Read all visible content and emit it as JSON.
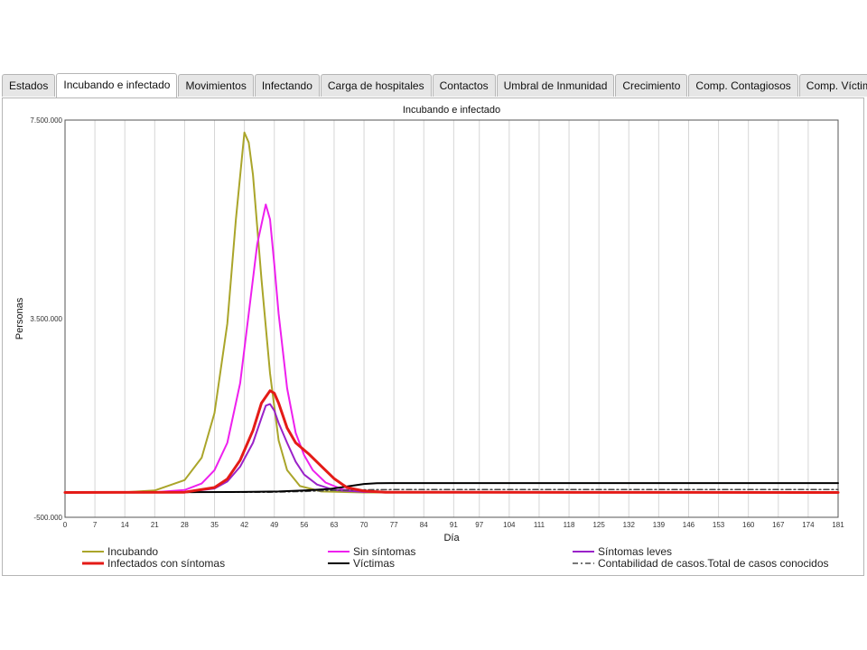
{
  "tabs": [
    {
      "label": "Estados"
    },
    {
      "label": "Incubando e infectado",
      "active": true
    },
    {
      "label": "Movimientos"
    },
    {
      "label": "Infectando"
    },
    {
      "label": "Carga de hospitales"
    },
    {
      "label": "Contactos"
    },
    {
      "label": "Umbral de Inmunidad"
    },
    {
      "label": "Crecimiento"
    },
    {
      "label": "Comp. Contagiosos"
    },
    {
      "label": "Comp. Víctimas"
    }
  ],
  "chart_data": {
    "type": "line",
    "title": "Incubando e infectado",
    "xlabel": "Día",
    "ylabel": "Personas",
    "xlim": [
      0,
      181
    ],
    "ylim": [
      -500000,
      7500000
    ],
    "x_ticks": [
      0,
      7,
      14,
      21,
      28,
      35,
      42,
      49,
      56,
      63,
      70,
      77,
      84,
      91,
      97,
      104,
      111,
      118,
      125,
      132,
      139,
      146,
      153,
      160,
      167,
      174,
      181
    ],
    "y_ticks": [
      -500000,
      3500000,
      7500000
    ],
    "y_tick_labels": [
      "-500.000",
      "3.500.000",
      "7.500.000"
    ],
    "grid": "vertical",
    "legend_position": "bottom",
    "series": [
      {
        "name": "Incubando",
        "color": "#aaa52a",
        "width": 2,
        "dash": "",
        "points": [
          [
            0,
            0
          ],
          [
            14,
            5000
          ],
          [
            21,
            40000
          ],
          [
            28,
            250000
          ],
          [
            32,
            700000
          ],
          [
            35,
            1600000
          ],
          [
            38,
            3400000
          ],
          [
            40,
            5500000
          ],
          [
            42,
            7250000
          ],
          [
            43,
            7050000
          ],
          [
            44,
            6400000
          ],
          [
            46,
            4300000
          ],
          [
            48,
            2400000
          ],
          [
            50,
            1050000
          ],
          [
            52,
            450000
          ],
          [
            55,
            130000
          ],
          [
            60,
            20000
          ],
          [
            70,
            0
          ],
          [
            181,
            0
          ]
        ]
      },
      {
        "name": "Sin síntomas",
        "color": "#ee20ee",
        "width": 2,
        "dash": "",
        "points": [
          [
            0,
            0
          ],
          [
            21,
            5000
          ],
          [
            28,
            50000
          ],
          [
            32,
            180000
          ],
          [
            35,
            450000
          ],
          [
            38,
            1000000
          ],
          [
            41,
            2200000
          ],
          [
            43,
            3600000
          ],
          [
            45,
            5000000
          ],
          [
            47,
            5800000
          ],
          [
            48,
            5500000
          ],
          [
            49,
            4600000
          ],
          [
            50,
            3600000
          ],
          [
            52,
            2100000
          ],
          [
            54,
            1200000
          ],
          [
            56,
            750000
          ],
          [
            58,
            450000
          ],
          [
            61,
            200000
          ],
          [
            65,
            60000
          ],
          [
            70,
            10000
          ],
          [
            181,
            0
          ]
        ]
      },
      {
        "name": "Síntomas leves",
        "color": "#9a22c9",
        "width": 2,
        "dash": "",
        "points": [
          [
            0,
            0
          ],
          [
            28,
            5000
          ],
          [
            35,
            80000
          ],
          [
            38,
            220000
          ],
          [
            41,
            520000
          ],
          [
            44,
            1000000
          ],
          [
            46,
            1500000
          ],
          [
            47,
            1750000
          ],
          [
            48,
            1780000
          ],
          [
            49,
            1650000
          ],
          [
            50,
            1400000
          ],
          [
            52,
            1000000
          ],
          [
            54,
            620000
          ],
          [
            56,
            360000
          ],
          [
            59,
            160000
          ],
          [
            63,
            50000
          ],
          [
            70,
            10000
          ],
          [
            181,
            0
          ]
        ]
      },
      {
        "name": "Infectados con síntomas",
        "color": "#e41b17",
        "width": 3,
        "dash": "",
        "points": [
          [
            0,
            0
          ],
          [
            28,
            5000
          ],
          [
            35,
            100000
          ],
          [
            38,
            270000
          ],
          [
            41,
            650000
          ],
          [
            44,
            1250000
          ],
          [
            46,
            1800000
          ],
          [
            48,
            2050000
          ],
          [
            49,
            2000000
          ],
          [
            50,
            1800000
          ],
          [
            52,
            1300000
          ],
          [
            54,
            1000000
          ],
          [
            57,
            780000
          ],
          [
            60,
            530000
          ],
          [
            63,
            280000
          ],
          [
            66,
            100000
          ],
          [
            70,
            30000
          ],
          [
            75,
            5000
          ],
          [
            181,
            0
          ]
        ]
      },
      {
        "name": "Víctimas",
        "color": "#000000",
        "width": 2,
        "dash": "",
        "points": [
          [
            0,
            0
          ],
          [
            42,
            10000
          ],
          [
            50,
            20000
          ],
          [
            56,
            40000
          ],
          [
            62,
            70000
          ],
          [
            66,
            120000
          ],
          [
            70,
            170000
          ],
          [
            73,
            185000
          ],
          [
            76,
            190000
          ],
          [
            181,
            190000
          ]
        ]
      },
      {
        "name": "Contabilidad de casos.Total de casos conocidos",
        "color": "#4a4a4a",
        "width": 1.5,
        "dash": "6,3,2,3",
        "points": [
          [
            0,
            0
          ],
          [
            48,
            5000
          ],
          [
            56,
            20000
          ],
          [
            62,
            40000
          ],
          [
            70,
            55000
          ],
          [
            80,
            60000
          ],
          [
            181,
            60000
          ]
        ]
      }
    ]
  }
}
